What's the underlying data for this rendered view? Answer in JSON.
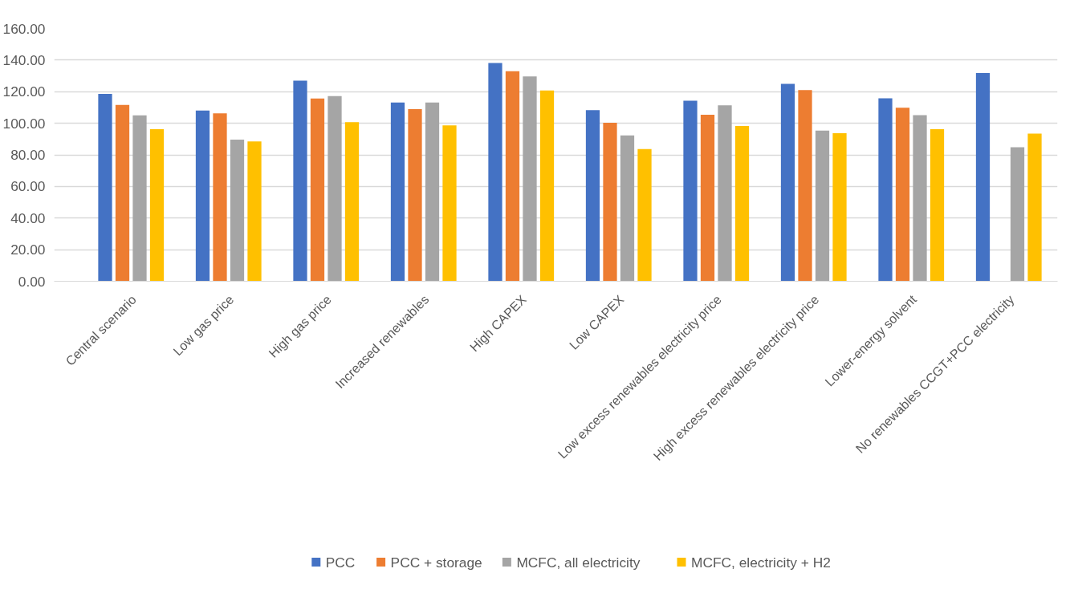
{
  "chart_data": {
    "type": "bar",
    "categories": [
      "Central scenario",
      "Low gas price",
      "High gas price",
      "Increased renewables",
      "High CAPEX",
      "Low CAPEX",
      "Low excess renewables electricity price",
      "High excess renewables electricity price",
      "Lower-energy solvent",
      "No renewables CCGT+PCC electricity"
    ],
    "series": [
      {
        "name": "PCC",
        "color": "#4472c4",
        "values": [
          118.6,
          108.1,
          127.0,
          113.2,
          138.2,
          108.3,
          114.3,
          124.9,
          115.8,
          131.8
        ]
      },
      {
        "name": "PCC + storage",
        "color": "#ed7d31",
        "values": [
          111.6,
          106.3,
          115.7,
          109.0,
          133.0,
          100.3,
          105.4,
          121.0,
          109.9,
          null
        ]
      },
      {
        "name": "MCFC, all electricity",
        "color": "#a5a5a5",
        "values": [
          105.0,
          89.6,
          117.2,
          113.2,
          129.6,
          92.3,
          111.4,
          95.4,
          105.2,
          84.8
        ]
      },
      {
        "name": "MCFC, electricity + H2",
        "color": "#ffc000",
        "values": [
          96.3,
          88.5,
          100.7,
          98.7,
          120.7,
          83.7,
          98.3,
          93.7,
          96.3,
          93.4
        ]
      }
    ],
    "ylim": [
      0,
      160
    ],
    "yticks": [
      {
        "value": 0,
        "label": "0.00"
      },
      {
        "value": 20,
        "label": "20.00"
      },
      {
        "value": 40,
        "label": "40.00"
      },
      {
        "value": 60,
        "label": "60.00"
      },
      {
        "value": 80,
        "label": "80.00"
      },
      {
        "value": 100,
        "label": "100.00"
      },
      {
        "value": 120,
        "label": "120.00"
      },
      {
        "value": 140,
        "label": "140.00"
      },
      {
        "value": 160,
        "label": "160.00"
      }
    ],
    "grid": "y",
    "legend": "bottom"
  }
}
